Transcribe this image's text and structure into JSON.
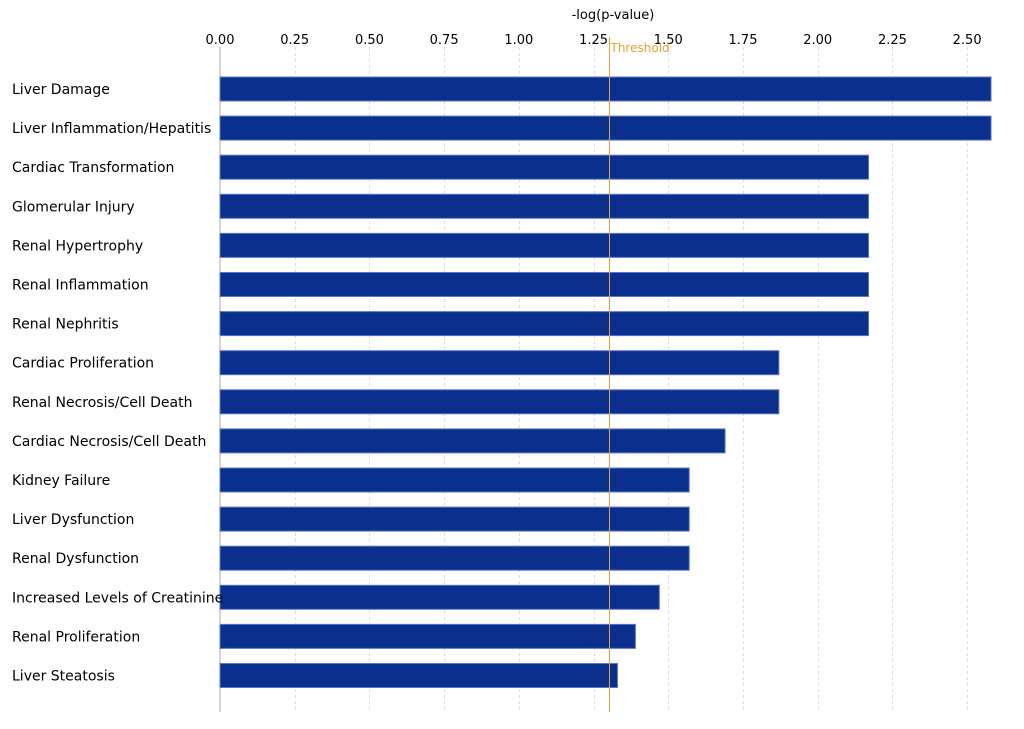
{
  "chart_data": {
    "type": "bar",
    "orientation": "horizontal",
    "title": "",
    "xlabel": "-log(p-value)",
    "ylabel": "",
    "xlim": [
      0,
      2.62
    ],
    "x_ticks": [
      "0.00",
      "0.25",
      "0.50",
      "0.75",
      "1.00",
      "1.25",
      "1.50",
      "1.75",
      "2.00",
      "2.25",
      "2.50"
    ],
    "x_tick_values": [
      0,
      0.25,
      0.5,
      0.75,
      1.0,
      1.25,
      1.5,
      1.75,
      2.0,
      2.25,
      2.5
    ],
    "grid": true,
    "threshold": {
      "label": "Threshold",
      "value": 1.3
    },
    "categories": [
      "Liver Damage",
      "Liver Inflammation/Hepatitis",
      "Cardiac Transformation",
      "Glomerular Injury",
      "Renal Hypertrophy",
      "Renal Inflammation",
      "Renal Nephritis",
      "Cardiac Proliferation",
      "Renal Necrosis/Cell Death",
      "Cardiac Necrosis/Cell Death",
      "Kidney Failure",
      "Liver Dysfunction",
      "Renal Dysfunction",
      "Increased Levels of Creatinine",
      "Renal Proliferation",
      "Liver Steatosis"
    ],
    "values": [
      2.58,
      2.58,
      2.17,
      2.17,
      2.17,
      2.17,
      2.17,
      1.87,
      1.87,
      1.69,
      1.57,
      1.57,
      1.57,
      1.47,
      1.39,
      1.33
    ]
  },
  "colors": {
    "bar": "#0a2f8c",
    "bar_edge": "#5a78c8",
    "threshold": "#f0a030",
    "grid": "#dddddd",
    "axis": "#aaaaaa"
  }
}
